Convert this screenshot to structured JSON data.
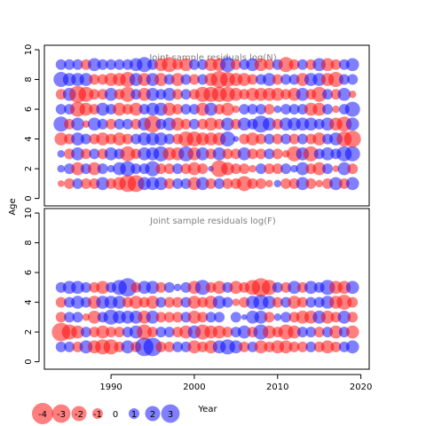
{
  "chart_data": [
    {
      "type": "scatter",
      "title": "Joint sample residuals log(N)",
      "ylabel": "Age",
      "xlim": [
        1982,
        2021
      ],
      "ylim": [
        -0.5,
        10.3
      ],
      "y_ticks": [
        "0",
        "2",
        "4",
        "6",
        "8",
        "10"
      ],
      "ages": [
        1,
        2,
        3,
        4,
        5,
        6,
        7,
        8,
        9
      ],
      "years": [
        1984,
        1985,
        1986,
        1987,
        1988,
        1989,
        1990,
        1991,
        1992,
        1993,
        1994,
        1995,
        1996,
        1997,
        1998,
        1999,
        2000,
        2001,
        2002,
        2003,
        2004,
        2005,
        2006,
        2007,
        2008,
        2009,
        2010,
        2011,
        2012,
        2013,
        2014,
        2015,
        2016,
        2017,
        2018,
        2019
      ],
      "residuals": [
        [
          -0.4,
          -1,
          1,
          -1,
          -1,
          1.5,
          -1,
          -1.5,
          -2.5,
          -2.5,
          1.5,
          1.5,
          1.5,
          -1,
          1,
          1,
          -1.5,
          1.5,
          -1,
          1,
          -1,
          -1,
          -2,
          -1,
          -1,
          -0.5,
          0.5,
          -1,
          -1,
          1.5,
          -1,
          -0.5,
          -1,
          1.5,
          -1,
          1.5
        ],
        [
          0.5,
          1,
          -1.5,
          1,
          -1.5,
          1,
          0.5,
          1.5,
          2,
          1,
          1,
          2,
          -1,
          -1,
          1,
          -1,
          -1.5,
          -1,
          0.3,
          -2.5,
          -1.5,
          -1,
          -1,
          -0.5,
          1,
          -1,
          -1,
          1,
          0.5,
          1.5,
          -1,
          -1.5,
          1,
          -0.4,
          1.5,
          -1
        ],
        [
          0.5,
          -1,
          1.5,
          -1,
          1,
          -1,
          1.5,
          1,
          -2,
          -1,
          1.5,
          1.5,
          2,
          -1.5,
          -1.5,
          2,
          -1.5,
          1.5,
          -1,
          1.5,
          -1,
          -1,
          1.5,
          -1,
          -1,
          1,
          -1,
          -0.5,
          -2,
          1.5,
          -2,
          1,
          1.5,
          1,
          2,
          2
        ],
        [
          -1.5,
          -1,
          1.5,
          1,
          -1,
          -1.5,
          -1,
          -1.5,
          -1,
          1,
          1.5,
          1.5,
          1.5,
          1,
          -1,
          -2,
          -2,
          -1.5,
          -1.5,
          -1.5,
          2,
          0.3,
          -1,
          -1.5,
          -1,
          1,
          -1,
          1,
          -1,
          1,
          -1,
          -1.5,
          1,
          1.5,
          -2,
          -2.5
        ],
        [
          2,
          -1,
          1.5,
          -0.5,
          1.5,
          1,
          -1,
          1,
          1,
          -1,
          1.5,
          -2.5,
          1,
          1.5,
          -1.5,
          -1,
          1,
          -1,
          -1.5,
          -1,
          1.5,
          -1,
          1.5,
          1,
          2.5,
          1.5,
          -1,
          1.5,
          1.5,
          1.5,
          1.5,
          1,
          1.5,
          -1.5,
          -2,
          1.5
        ],
        [
          1,
          1,
          -2,
          -1.5,
          -1,
          1.5,
          1,
          -1.5,
          -1,
          -1.5,
          1,
          1.5,
          1.5,
          -1.5,
          -1,
          1,
          1,
          -1.5,
          1.5,
          -1,
          -1.5,
          -0.5,
          1,
          1,
          1,
          -1,
          0.5,
          1,
          1,
          1,
          -1.5,
          -1.5,
          1,
          -0.5,
          1,
          2
        ],
        [
          -1,
          1.5,
          -2.5,
          -2,
          -1,
          -1,
          1.5,
          -1,
          -2,
          1,
          -1.5,
          1.5,
          1,
          1.5,
          -1,
          1,
          -1,
          -2,
          -2,
          -2,
          -2,
          -1.5,
          -1,
          -1.5,
          -1.5,
          -1.5,
          -1.5,
          -1,
          -1.5,
          1.5,
          -1,
          -2,
          1,
          -1,
          1.5,
          -0.5
        ],
        [
          2,
          1.5,
          1.5,
          1.5,
          -1,
          -1,
          -1.5,
          -1.5,
          -2,
          1.5,
          -1.5,
          1.5,
          -1.5,
          1,
          -1.5,
          1,
          -1,
          1,
          -1.5,
          -2.5,
          -2,
          -1.5,
          -1.5,
          -1,
          1,
          1.5,
          -1,
          1,
          1,
          -1.5,
          1.5,
          1.5,
          -1.5,
          -2,
          1,
          1
        ],
        [
          1,
          1,
          1,
          -1,
          1.5,
          1,
          1,
          1,
          1,
          1.5,
          2,
          1,
          -1.5,
          -2,
          -1,
          -1.5,
          1,
          1,
          -1.5,
          -1.5,
          2,
          -1,
          1,
          1.5,
          -1.5,
          -1,
          1,
          -2,
          -1,
          1,
          -1,
          1.5,
          -1.5,
          -1,
          1,
          1.5
        ]
      ]
    },
    {
      "type": "scatter",
      "title": "Joint sample residuals log(F)",
      "xlabel": "Year",
      "ylabel": "Age",
      "xlim": [
        1982,
        2021
      ],
      "ylim": [
        -0.5,
        10.3
      ],
      "x_ticks": [
        "1990",
        "2000",
        "2010",
        "2020"
      ],
      "y_ticks": [
        "0",
        "2",
        "4",
        "6",
        "8",
        "10"
      ],
      "ages": [
        1,
        2,
        3,
        4,
        5
      ],
      "years": [
        1984,
        1985,
        1986,
        1987,
        1988,
        1989,
        1990,
        1991,
        1992,
        1993,
        1994,
        1995,
        1996,
        1997,
        1998,
        1999,
        2000,
        2001,
        2002,
        2003,
        2004,
        2005,
        2006,
        2007,
        2008,
        2009,
        2010,
        2011,
        2012,
        2013,
        2014,
        2015,
        2016,
        2017,
        2018,
        2019
      ],
      "residuals": [
        [
          1,
          1,
          -1,
          1.5,
          -1.5,
          -2,
          -2,
          -1,
          1.5,
          -1,
          3,
          3,
          -1,
          -1,
          1,
          1,
          -1.5,
          -1,
          -1.5,
          1.5,
          2,
          1.5,
          -1,
          1,
          -1.5,
          -1,
          -1.5,
          -1.5,
          -1,
          -1,
          1,
          -1,
          -1.5,
          -1,
          1,
          1.5
        ],
        [
          -3,
          -2,
          -1.5,
          1,
          -1,
          -1.5,
          -1,
          -1,
          1,
          1.5,
          -2,
          -1,
          1,
          1,
          -1,
          -1.5,
          1.5,
          -2,
          -1.5,
          -1.5,
          -1,
          1,
          1.5,
          -1,
          2,
          -1.5,
          -1,
          -2,
          -1.5,
          1,
          1,
          -1,
          1,
          -1.5,
          1,
          -1.5
        ],
        [
          -1,
          1,
          1,
          -0.5,
          -1.5,
          1,
          2,
          1.5,
          1.5,
          1.5,
          -1.5,
          1.5,
          -1,
          -1,
          -1,
          1,
          -1.5,
          -1,
          1,
          1,
          0,
          1,
          0.3,
          1.5,
          1.5,
          -1,
          0.5,
          1,
          -1,
          -1.5,
          -1.5,
          1.5,
          -1.5,
          -1,
          1.5,
          -1
        ],
        [
          -1,
          1,
          1.5,
          1,
          -1.5,
          1.5,
          1.5,
          1.5,
          -1,
          -1.5,
          -1,
          -1.5,
          1,
          -1,
          -1,
          1,
          -1.5,
          -1,
          -1.5,
          1.5,
          1,
          -0.5,
          -1,
          1.5,
          2,
          1.5,
          -1,
          1,
          -1.5,
          -1,
          1,
          1,
          1.5,
          -1.5,
          -2,
          -1
        ],
        [
          1,
          1.5,
          1.5,
          1,
          -1,
          -1.5,
          1,
          2,
          3,
          -1,
          1.5,
          1.5,
          -1,
          1,
          0.5,
          1,
          -1.5,
          2,
          -1,
          -1.5,
          1,
          -1.5,
          -1,
          -2,
          -3,
          -2,
          1,
          -1,
          1.5,
          -1,
          1.5,
          1,
          2,
          -1.5,
          -1.5,
          1.5
        ]
      ]
    }
  ],
  "legend": {
    "items": [
      "-4",
      "-3",
      "-2",
      "-1",
      "0",
      "1",
      "2",
      "3"
    ],
    "values": [
      -4,
      -3,
      -2,
      -1,
      0,
      1,
      2,
      3
    ]
  },
  "colors": {
    "negative": "#ff0000",
    "positive": "#0000ff",
    "frame": "#000000",
    "title": "#808080"
  }
}
